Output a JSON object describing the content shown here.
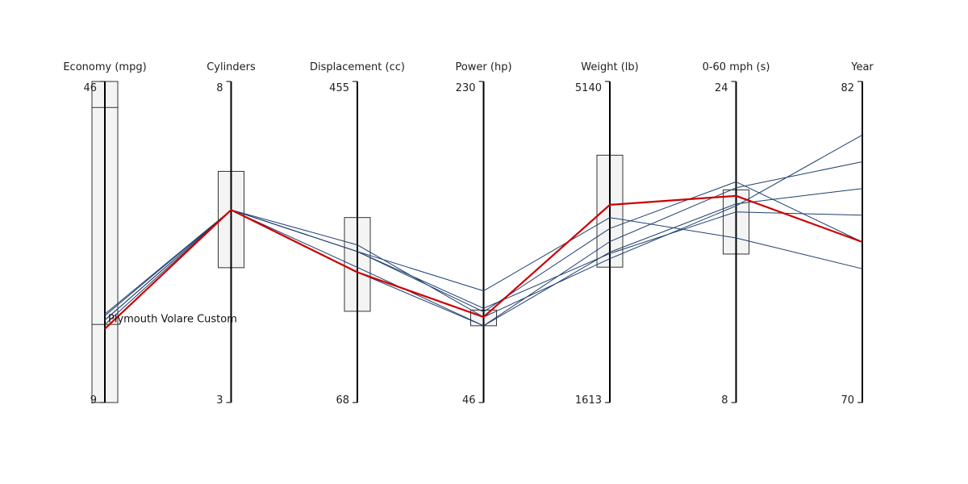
{
  "chart_data": {
    "type": "parallel-coordinates",
    "axes": [
      {
        "id": "economy",
        "label": "Economy (mpg)",
        "min": 9,
        "max": 46,
        "min_label": "9",
        "max_label": "46"
      },
      {
        "id": "cylinders",
        "label": "Cylinders",
        "min": 3,
        "max": 8,
        "min_label": "3",
        "max_label": "8"
      },
      {
        "id": "displacement",
        "label": "Displacement (cc)",
        "min": 68,
        "max": 455,
        "min_label": "68",
        "max_label": "455"
      },
      {
        "id": "power",
        "label": "Power (hp)",
        "min": 46,
        "max": 230,
        "min_label": "46",
        "max_label": "230"
      },
      {
        "id": "weight",
        "label": "Weight (lb)",
        "min": 1613,
        "max": 5140,
        "min_label": "1613",
        "max_label": "5140"
      },
      {
        "id": "accel",
        "label": "0-60 mph (s)",
        "min": 8,
        "max": 24,
        "min_label": "8",
        "max_label": "24"
      },
      {
        "id": "year",
        "label": "Year",
        "min": 70,
        "max": 82,
        "min_label": "70",
        "max_label": "82"
      }
    ],
    "filters": [
      {
        "axis": "economy",
        "range": [
          9,
          46
        ]
      },
      {
        "axis": "economy",
        "range": [
          18,
          43
        ]
      },
      {
        "axis": "cylinders",
        "range": [
          5.1,
          6.6
        ]
      },
      {
        "axis": "displacement",
        "range": [
          178,
          291
        ]
      },
      {
        "axis": "power",
        "range": [
          90,
          99
        ]
      },
      {
        "axis": "weight",
        "range": [
          3100,
          4330
        ]
      },
      {
        "axis": "accel",
        "range": [
          15.4,
          18.6
        ]
      }
    ],
    "series": [
      {
        "values": [
          18,
          6,
          250,
          100,
          3250,
          17.5,
          77
        ]
      },
      {
        "values": [
          18.5,
          6,
          250,
          98,
          3525,
          19,
          76
        ]
      },
      {
        "values": [
          18.5,
          6,
          250,
          110,
          3645,
          16.2,
          75
        ]
      },
      {
        "values": [
          17.5,
          6,
          258,
          95,
          3193,
          17.8,
          80
        ]
      },
      {
        "values": [
          19,
          6,
          225,
          90,
          3381,
          18.7,
          79
        ]
      },
      {
        "values": [
          19.2,
          6,
          231,
          90,
          3265,
          17.9,
          78
        ]
      },
      {
        "values": [
          17.5,
          6,
          225,
          95,
          3785,
          18.3,
          76
        ],
        "name": "Plymouth Volare Custom",
        "highlight": true
      }
    ],
    "colors": {
      "line": "#1f3f6e",
      "highlight": "#cc0000",
      "axis": "#000000",
      "filter_fill": "#f4f4f4",
      "filter_stroke": "#333333"
    }
  }
}
